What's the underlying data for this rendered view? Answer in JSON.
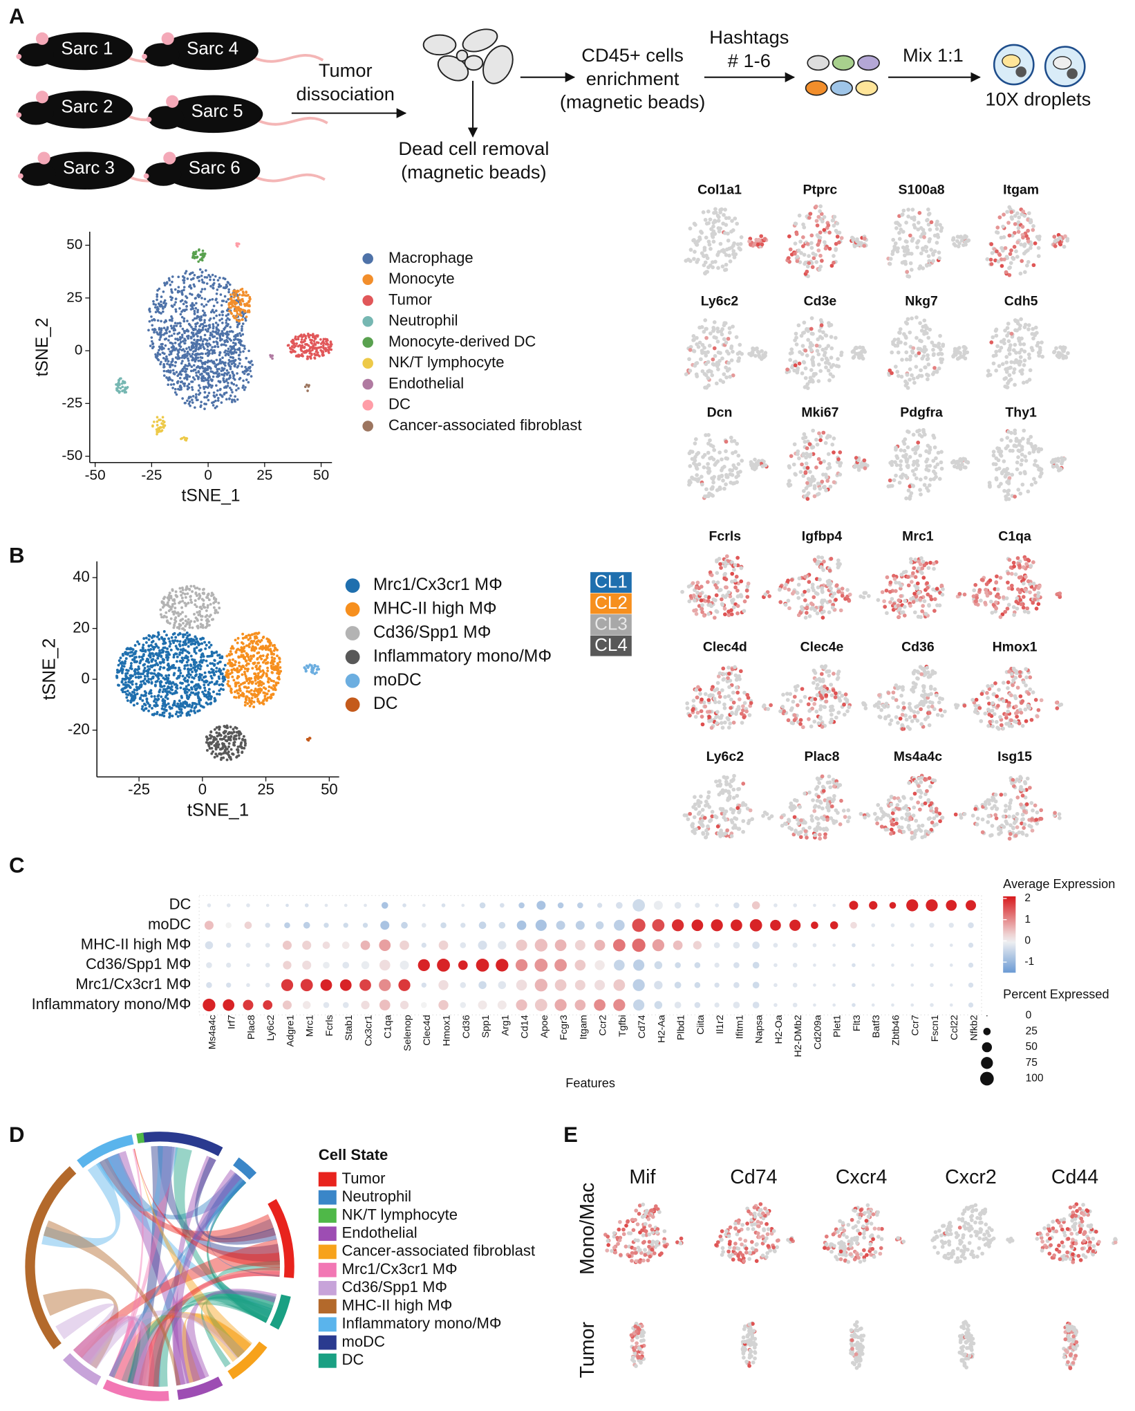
{
  "panel_labels": [
    "A",
    "B",
    "C",
    "D",
    "E"
  ],
  "workflow": {
    "mice": [
      "Sarc 1",
      "Sarc 2",
      "Sarc 3",
      "Sarc 4",
      "Sarc 5",
      "Sarc 6"
    ],
    "tumor_dissociation": [
      "Tumor",
      "dissociation"
    ],
    "dead_cell_removal": [
      "Dead cell removal",
      "(magnetic beads)"
    ],
    "cd45_enrichment": [
      "CD45+ cells",
      "enrichment",
      "(magnetic beads)"
    ],
    "hashtags": [
      "Hashtags",
      "# 1-6"
    ],
    "mix": "Mix 1:1",
    "droplets": "10X droplets"
  },
  "tsne_a": {
    "type": "scatter",
    "xlabel": "tSNE_1",
    "ylabel": "tSNE_2",
    "xlim": [
      -52.4,
      54.8
    ],
    "ylim": [
      -53,
      56.4
    ],
    "xticks": [
      -50,
      -25,
      0,
      25,
      50
    ],
    "yticks": [
      -50,
      -25,
      0,
      25,
      50
    ],
    "legend": [
      {
        "name": "Macrophage",
        "color": "#4e72a8"
      },
      {
        "name": "Monocyte",
        "color": "#f28e2b"
      },
      {
        "name": "Tumor",
        "color": "#e15759"
      },
      {
        "name": "Neutrophil",
        "color": "#76b7b2"
      },
      {
        "name": "Monocyte-derived DC",
        "color": "#59a14f"
      },
      {
        "name": "NK/T lymphocyte",
        "color": "#edc948"
      },
      {
        "name": "Endothelial",
        "color": "#b07aa1"
      },
      {
        "name": "DC",
        "color": "#ff9da7"
      },
      {
        "name": "Cancer-associated fibroblast",
        "color": "#9c755f"
      }
    ]
  },
  "features_a": [
    "Col1a1",
    "Ptprc",
    "S100a8",
    "Itgam",
    "Ly6c2",
    "Cd3e",
    "Nkg7",
    "Cdh5",
    "Dcn",
    "Mki67",
    "Pdgfra",
    "Thy1"
  ],
  "tsne_b": {
    "type": "scatter",
    "xlabel": "tSNE_1",
    "ylabel": "tSNE_2",
    "xlim": [
      -41.6,
      53.9
    ],
    "ylim": [
      -38.4,
      46.4
    ],
    "xticks": [
      -25,
      0,
      25,
      50
    ],
    "yticks": [
      -20,
      0,
      20,
      40
    ],
    "legend": [
      {
        "name": "Mrc1/Cx3cr1 MΦ",
        "color": "#1f6fae"
      },
      {
        "name": "MHC-II high MΦ",
        "color": "#f68f1e"
      },
      {
        "name": "Cd36/Spp1 MΦ",
        "color": "#b3b3b3"
      },
      {
        "name": "Inflammatory mono/MΦ",
        "color": "#585858"
      },
      {
        "name": "moDC",
        "color": "#6caee0"
      },
      {
        "name": "DC",
        "color": "#c45a1b"
      }
    ],
    "clusters": [
      {
        "name": "CL1",
        "color": "#1f6fae"
      },
      {
        "name": "CL2",
        "color": "#f68f1e"
      },
      {
        "name": "CL3",
        "color": "#a8a8a8"
      },
      {
        "name": "CL4",
        "color": "#585858"
      }
    ]
  },
  "features_b": [
    "Fcrls",
    "Igfbp4",
    "Mrc1",
    "C1qa",
    "Clec4d",
    "Clec4e",
    "Cd36",
    "Hmox1",
    "Ly6c2",
    "Plac8",
    "Ms4a4c",
    "Isg15"
  ],
  "dotplot": {
    "type": "dot",
    "xlabel": "Features",
    "rows": [
      "DC",
      "moDC",
      "MHC-II high MΦ",
      "Cd36/Spp1 MΦ",
      "Mrc1/Cx3cr1 MΦ",
      "Inflammatory mono/MΦ"
    ],
    "features": [
      "Ms4a4c",
      "Irf7",
      "Plac8",
      "Ly6c2",
      "Adgre1",
      "Mrc1",
      "Fcrls",
      "Stab1",
      "Cx3cr1",
      "C1qa",
      "Selenop",
      "Clec4d",
      "Hmox1",
      "Cd36",
      "Spp1",
      "Arg1",
      "Cd14",
      "Apoe",
      "Fcgr3",
      "Itgam",
      "Ccr2",
      "Tgfbi",
      "Cd74",
      "H2-Aa",
      "Plbd1",
      "Ciita",
      "Il1r2",
      "Ifitm1",
      "Napsa",
      "H2-Oa",
      "H2-DMb2",
      "Cd209a",
      "Plet1",
      "Flt3",
      "Batf3",
      "Zbtb46",
      "Ccr7",
      "Fscn1",
      "Ccl22",
      "Nfkb2"
    ],
    "avg": [
      [
        -0.2,
        -0.2,
        -0.2,
        -0.2,
        -0.3,
        -0.3,
        -0.2,
        -0.2,
        -0.2,
        -0.8,
        -0.3,
        -0.2,
        -0.3,
        -0.2,
        -0.4,
        -0.3,
        -0.7,
        -0.8,
        -0.7,
        -0.6,
        -0.3,
        -0.3,
        -0.4,
        -0.1,
        -0.2,
        -0.2,
        -0.2,
        -0.3,
        0.4,
        -0.2,
        -0.2,
        -0.2,
        -0.2,
        2,
        2,
        2,
        2,
        2,
        2,
        2
      ],
      [
        0.5,
        0,
        0.3,
        -0.3,
        -0.6,
        -0.6,
        -0.4,
        -0.4,
        -0.4,
        -0.8,
        -0.5,
        -0.2,
        -0.4,
        -0.3,
        -0.5,
        -0.4,
        -0.8,
        -0.8,
        -0.6,
        -0.6,
        -0.5,
        -0.6,
        1.6,
        1.6,
        1.9,
        2,
        2,
        2,
        2,
        2,
        2,
        2,
        2,
        0.2,
        -0.2,
        -0.2,
        -0.2,
        -0.2,
        -0.2,
        -0.3
      ],
      [
        -0.3,
        -0.3,
        -0.2,
        -0.2,
        0.4,
        0.3,
        0.2,
        0.1,
        0.6,
        0.8,
        0.3,
        -0.3,
        0.3,
        -0.2,
        -0.3,
        -0.2,
        0.4,
        0.5,
        0.6,
        0.3,
        0.6,
        1.2,
        1.3,
        0.8,
        0.5,
        0.3,
        -0.2,
        -0.2,
        -0.3,
        -0.2,
        -0.2,
        -0.2,
        -0.2,
        -0.3,
        -0.2,
        -0.2,
        -0.2,
        -0.2,
        -0.2,
        -0.3
      ],
      [
        -0.2,
        -0.2,
        -0.2,
        -0.2,
        0.3,
        0.2,
        -0.1,
        -0.2,
        -0.1,
        0.2,
        -0.1,
        2,
        2,
        2,
        2,
        2,
        1,
        0.9,
        0.9,
        0.4,
        0.1,
        -0.5,
        -0.6,
        -0.4,
        -0.4,
        -0.4,
        -0.2,
        -0.3,
        -0.4,
        -0.2,
        -0.2,
        -0.2,
        -0.2,
        -0.3,
        -0.2,
        -0.2,
        -0.2,
        -0.2,
        -0.2,
        -0.3
      ],
      [
        -0.3,
        -0.3,
        -0.2,
        -0.2,
        1.8,
        1.8,
        2,
        2,
        1.7,
        1,
        1.8,
        -0.3,
        0.2,
        -0.2,
        -0.4,
        -0.2,
        0.2,
        0.6,
        0.4,
        0.3,
        0.2,
        0.4,
        -0.6,
        -0.3,
        -0.4,
        -0.4,
        -0.3,
        -0.3,
        -0.4,
        -0.2,
        -0.2,
        -0.2,
        -0.2,
        -0.3,
        -0.2,
        -0.2,
        -0.2,
        -0.2,
        -0.2,
        -0.3
      ],
      [
        2,
        2,
        1.8,
        1.8,
        0.4,
        0.1,
        -0.2,
        -0.2,
        0.2,
        0.5,
        0.2,
        0,
        0.4,
        -0.1,
        0.1,
        0.1,
        0.5,
        0.4,
        0.7,
        0.6,
        1,
        1,
        -0.5,
        -0.4,
        -0.2,
        -0.3,
        -0.2,
        -0.2,
        -0.3,
        -0.2,
        -0.2,
        -0.2,
        -0.2,
        -0.3,
        -0.2,
        -0.2,
        -0.2,
        -0.2,
        -0.2,
        -0.3
      ]
    ],
    "pct": [
      [
        5,
        5,
        5,
        3,
        3,
        5,
        3,
        3,
        3,
        20,
        5,
        3,
        5,
        3,
        15,
        8,
        15,
        40,
        15,
        15,
        10,
        20,
        80,
        40,
        20,
        10,
        5,
        15,
        30,
        5,
        5,
        3,
        3,
        40,
        35,
        20,
        75,
        75,
        60,
        55
      ],
      [
        40,
        15,
        25,
        10,
        15,
        20,
        10,
        10,
        10,
        40,
        20,
        8,
        15,
        10,
        25,
        20,
        45,
        65,
        40,
        40,
        30,
        60,
        95,
        80,
        75,
        70,
        75,
        70,
        80,
        60,
        65,
        25,
        30,
        20,
        5,
        5,
        8,
        10,
        10,
        15
      ],
      [
        30,
        10,
        10,
        8,
        40,
        40,
        25,
        25,
        45,
        70,
        45,
        10,
        45,
        15,
        40,
        35,
        65,
        85,
        70,
        55,
        60,
        80,
        95,
        75,
        45,
        35,
        15,
        20,
        25,
        8,
        10,
        5,
        3,
        5,
        3,
        3,
        3,
        5,
        3,
        10
      ],
      [
        15,
        10,
        5,
        8,
        35,
        40,
        20,
        20,
        30,
        60,
        40,
        75,
        90,
        45,
        90,
        85,
        75,
        90,
        80,
        60,
        50,
        60,
        65,
        30,
        15,
        15,
        10,
        15,
        20,
        5,
        8,
        3,
        3,
        5,
        3,
        3,
        3,
        5,
        3,
        10
      ],
      [
        15,
        10,
        5,
        8,
        75,
        80,
        70,
        70,
        70,
        75,
        75,
        10,
        50,
        15,
        30,
        30,
        60,
        85,
        70,
        55,
        55,
        70,
        75,
        35,
        20,
        15,
        10,
        15,
        20,
        5,
        8,
        3,
        3,
        5,
        3,
        3,
        3,
        5,
        3,
        10
      ],
      [
        85,
        70,
        55,
        45,
        40,
        30,
        15,
        15,
        35,
        60,
        35,
        15,
        50,
        15,
        40,
        40,
        65,
        80,
        75,
        60,
        70,
        75,
        65,
        30,
        20,
        15,
        10,
        20,
        20,
        5,
        8,
        3,
        3,
        5,
        3,
        3,
        3,
        5,
        3,
        10
      ]
    ],
    "color_title": "Average Expression",
    "color_lim": [
      -1.5,
      2.1
    ],
    "color_ticks": [
      2,
      1,
      0,
      -1
    ],
    "color_low": "#6a9ad4",
    "color_mid": "#f2f2f2",
    "color_high": "#d7191c",
    "size_title": "Percent Expressed",
    "size_ticks": [
      0,
      25,
      50,
      75,
      100
    ]
  },
  "chord": {
    "legend_title": "Cell State",
    "states": [
      {
        "name": "Tumor",
        "color": "#e8231d"
      },
      {
        "name": "Neutrophil",
        "color": "#3a86c8"
      },
      {
        "name": "NK/T lymphocyte",
        "color": "#4fb848"
      },
      {
        "name": "Endothelial",
        "color": "#9d4db3"
      },
      {
        "name": "Cancer-associated fibroblast",
        "color": "#f7a21b"
      },
      {
        "name": "Mrc1/Cx3cr1 MΦ",
        "color": "#f277b4"
      },
      {
        "name": "Cd36/Spp1 MΦ",
        "color": "#c7a3d9"
      },
      {
        "name": "MHC-II high MΦ",
        "color": "#b3692b"
      },
      {
        "name": "Inflammatory mono/MΦ",
        "color": "#5ab4ec"
      },
      {
        "name": "moDC",
        "color": "#2a3a8f"
      },
      {
        "name": "DC",
        "color": "#1aa083"
      }
    ]
  },
  "panel_e": {
    "genes": [
      "Mif",
      "Cd74",
      "Cxcr4",
      "Cxcr2",
      "Cd44"
    ],
    "rows": [
      "Mono/Mac",
      "Tumor"
    ]
  }
}
